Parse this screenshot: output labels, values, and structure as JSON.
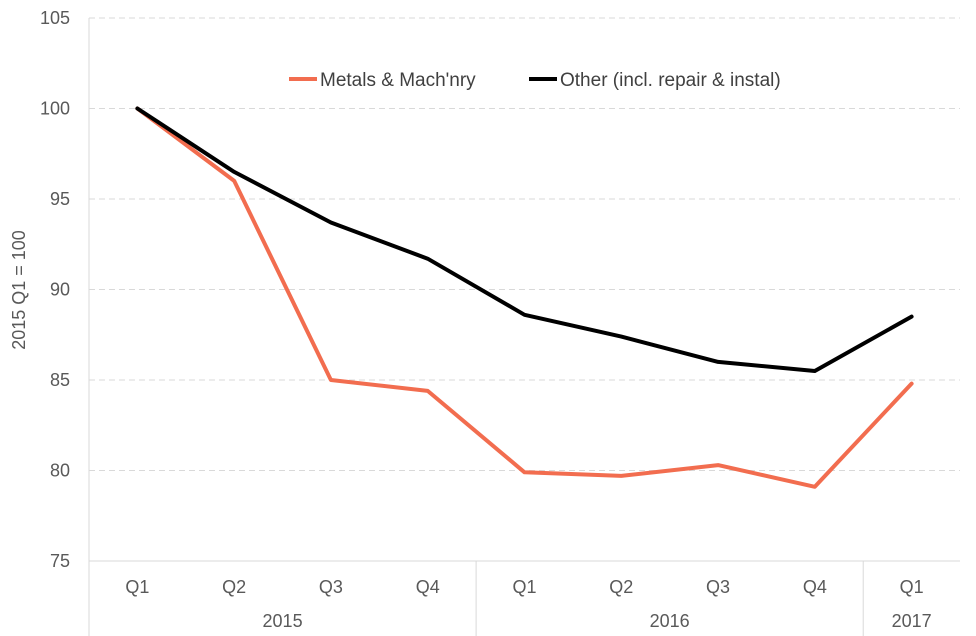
{
  "chart_data": {
    "type": "line",
    "ylabel": "2015 Q1 = 100",
    "ylim": [
      75,
      105
    ],
    "yticks": [
      75,
      80,
      85,
      90,
      95,
      100,
      105
    ],
    "grid": true,
    "legend_position": "top",
    "categories": [
      "Q1",
      "Q2",
      "Q3",
      "Q4",
      "Q1",
      "Q2",
      "Q3",
      "Q4",
      "Q1"
    ],
    "years": [
      {
        "label": "2015",
        "span": 4
      },
      {
        "label": "2016",
        "span": 4
      },
      {
        "label": "2017",
        "span": 1
      }
    ],
    "series": [
      {
        "name": "Metals & Mach'nry",
        "color": "#f26d4f",
        "values": [
          100,
          96.0,
          85.0,
          84.4,
          79.9,
          79.7,
          80.3,
          79.1,
          84.8
        ]
      },
      {
        "name": "Other (incl. repair & instal)",
        "color": "#000000",
        "values": [
          100,
          96.5,
          93.7,
          91.7,
          88.6,
          87.4,
          86.0,
          85.5,
          88.5
        ]
      }
    ]
  }
}
